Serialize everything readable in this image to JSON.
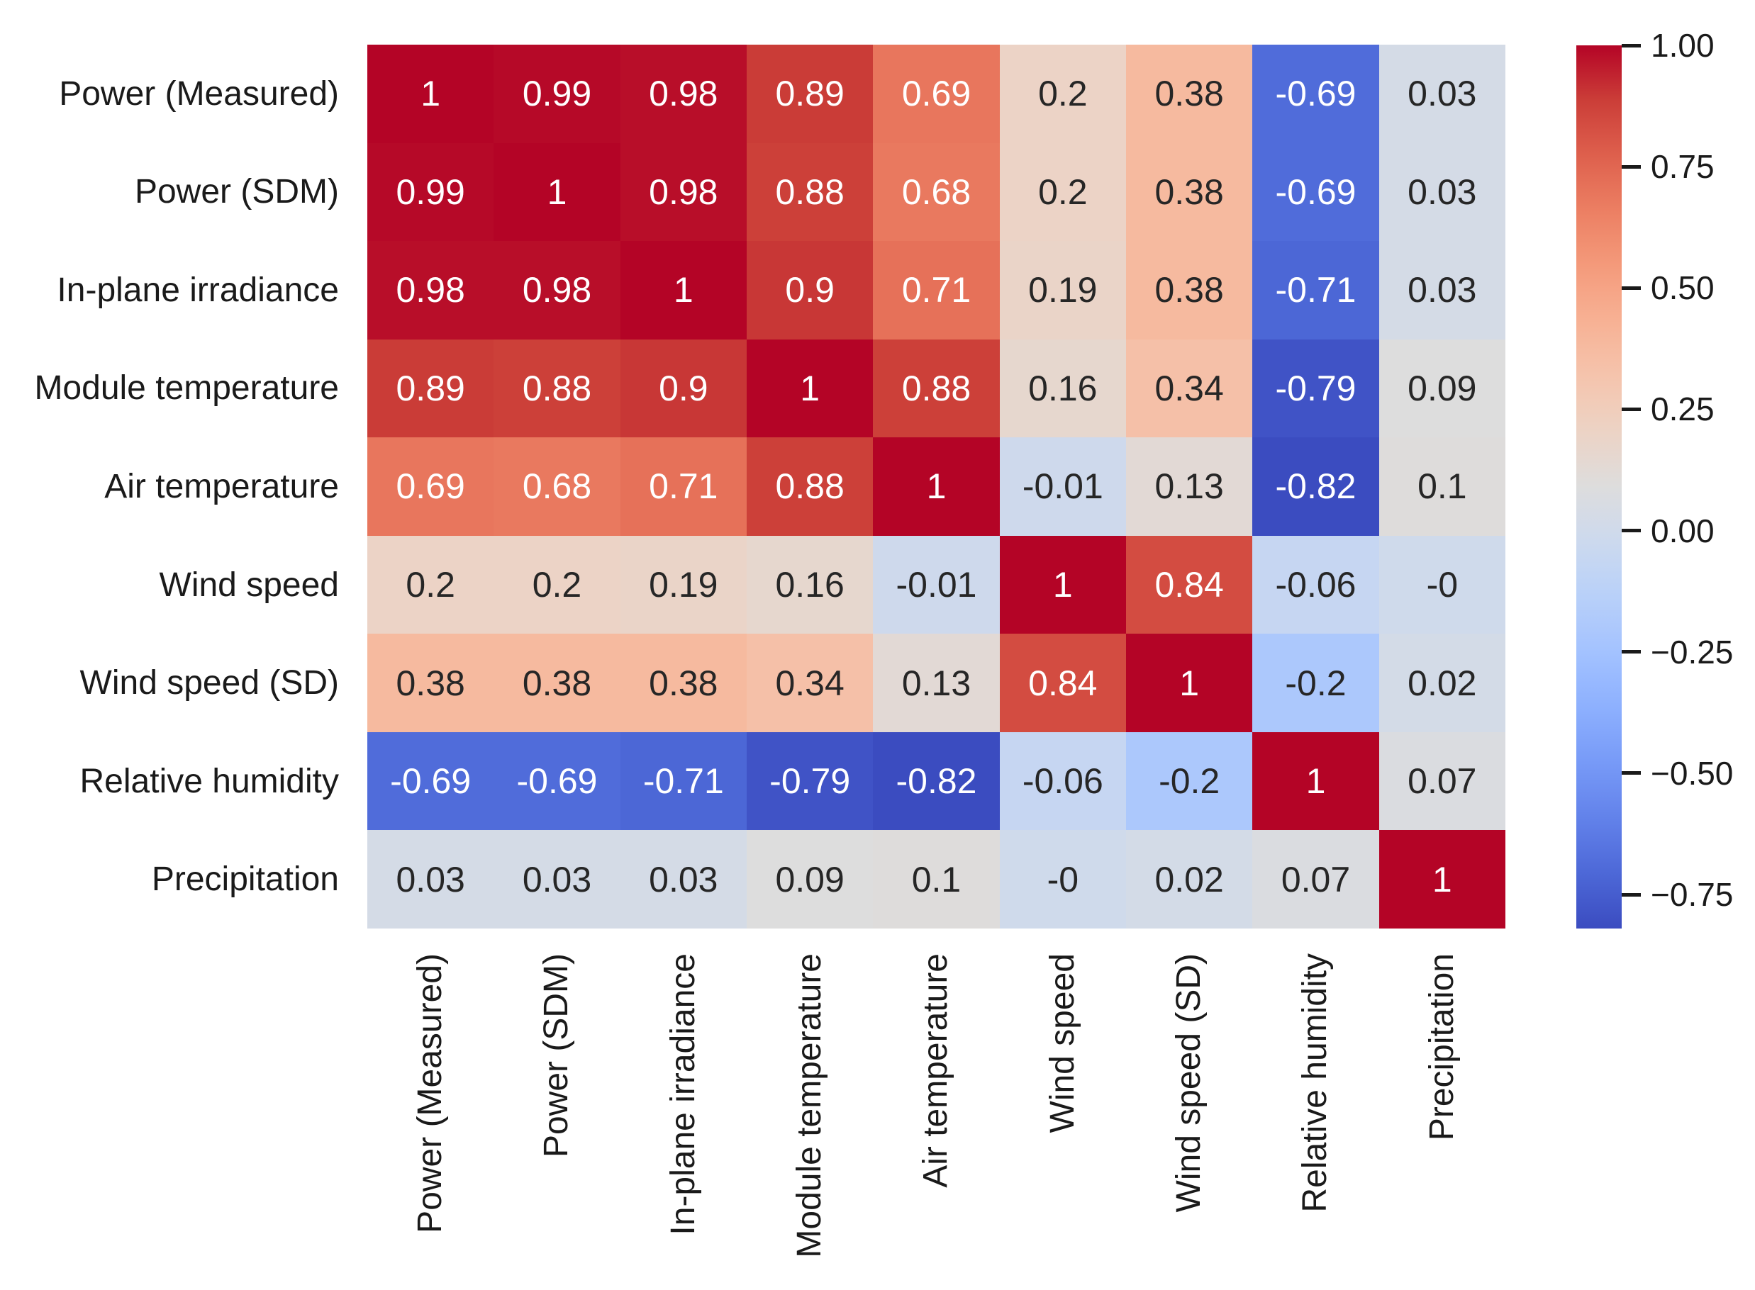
{
  "figure": {
    "background": "#ffffff",
    "axis_text_color": "#1a1a1a"
  },
  "chart_data": {
    "type": "heatmap",
    "title": "",
    "xlabel": "",
    "ylabel": "",
    "variables": [
      "Power (Measured)",
      "Power (SDM)",
      "In-plane irradiance",
      "Module temperature",
      "Air temperature",
      "Wind speed",
      "Wind speed (SD)",
      "Relative humidity",
      "Precipitation"
    ],
    "matrix": [
      [
        1,
        0.99,
        0.98,
        0.89,
        0.69,
        0.2,
        0.38,
        -0.69,
        0.03
      ],
      [
        0.99,
        1,
        0.98,
        0.88,
        0.68,
        0.2,
        0.38,
        -0.69,
        0.03
      ],
      [
        0.98,
        0.98,
        1,
        0.9,
        0.71,
        0.19,
        0.38,
        -0.71,
        0.03
      ],
      [
        0.89,
        0.88,
        0.9,
        1,
        0.88,
        0.16,
        0.34,
        -0.79,
        0.09
      ],
      [
        0.69,
        0.68,
        0.71,
        0.88,
        1,
        -0.01,
        0.13,
        -0.82,
        0.1
      ],
      [
        0.2,
        0.2,
        0.19,
        0.16,
        -0.01,
        1,
        0.84,
        -0.06,
        -0.004
      ],
      [
        0.38,
        0.38,
        0.38,
        0.34,
        0.13,
        0.84,
        1,
        -0.2,
        0.02
      ],
      [
        -0.69,
        -0.69,
        -0.71,
        -0.79,
        -0.82,
        -0.06,
        -0.2,
        1,
        0.07
      ],
      [
        0.03,
        0.03,
        0.03,
        0.09,
        0.1,
        -0.004,
        0.02,
        0.07,
        1
      ]
    ],
    "cell_labels": [
      [
        "1",
        "0.99",
        "0.98",
        "0.89",
        "0.69",
        "0.2",
        "0.38",
        "-0.69",
        "0.03"
      ],
      [
        "0.99",
        "1",
        "0.98",
        "0.88",
        "0.68",
        "0.2",
        "0.38",
        "-0.69",
        "0.03"
      ],
      [
        "0.98",
        "0.98",
        "1",
        "0.9",
        "0.71",
        "0.19",
        "0.38",
        "-0.71",
        "0.03"
      ],
      [
        "0.89",
        "0.88",
        "0.9",
        "1",
        "0.88",
        "0.16",
        "0.34",
        "-0.79",
        "0.09"
      ],
      [
        "0.69",
        "0.68",
        "0.71",
        "0.88",
        "1",
        "-0.01",
        "0.13",
        "-0.82",
        "0.1"
      ],
      [
        "0.2",
        "0.2",
        "0.19",
        "0.16",
        "-0.01",
        "1",
        "0.84",
        "-0.06",
        "-0"
      ],
      [
        "0.38",
        "0.38",
        "0.38",
        "0.34",
        "0.13",
        "0.84",
        "1",
        "-0.2",
        "0.02"
      ],
      [
        "-0.69",
        "-0.69",
        "-0.71",
        "-0.79",
        "-0.82",
        "-0.06",
        "-0.2",
        "1",
        "0.07"
      ],
      [
        "0.03",
        "0.03",
        "0.03",
        "0.09",
        "0.1",
        "-0",
        "0.02",
        "0.07",
        "1"
      ]
    ],
    "colormap": "coolwarm",
    "vmin": -0.82,
    "vmax": 1.0,
    "grid": false,
    "annotation_colors": {
      "light": "#ffffff",
      "dark": "#262626"
    },
    "colorbar": {
      "position": "right",
      "ticks": [
        {
          "value": 1.0,
          "label": "1.00"
        },
        {
          "value": 0.75,
          "label": "0.75"
        },
        {
          "value": 0.5,
          "label": "0.50"
        },
        {
          "value": 0.25,
          "label": "0.25"
        },
        {
          "value": 0.0,
          "label": "0.00"
        },
        {
          "value": -0.25,
          "label": "−0.25"
        },
        {
          "value": -0.5,
          "label": "−0.50"
        },
        {
          "value": -0.75,
          "label": "−0.75"
        }
      ]
    }
  }
}
